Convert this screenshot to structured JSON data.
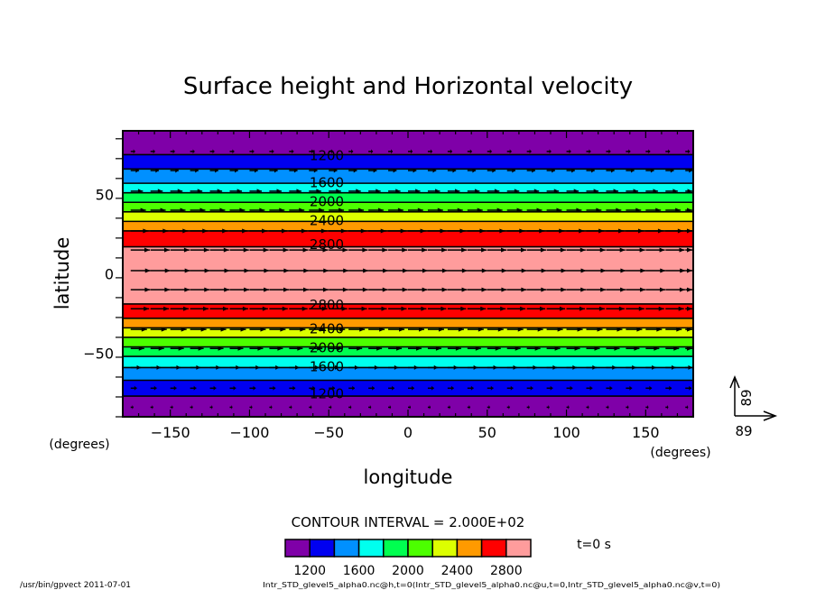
{
  "chart_data": {
    "type": "heatmap",
    "title": "Surface height and Horizontal velocity",
    "xlabel": "longitude",
    "ylabel": "latitude",
    "x_units": "(degrees)",
    "y_units": "(degrees)",
    "xlim": [
      -180,
      180
    ],
    "ylim": [
      -90,
      90
    ],
    "x_ticks": [
      -150,
      -100,
      -50,
      0,
      50,
      100,
      150
    ],
    "x_tick_labels": [
      "−150",
      "−100",
      "−50",
      "0",
      "50",
      "100",
      "150"
    ],
    "y_ticks": [
      50,
      0,
      -50
    ],
    "y_tick_labels": [
      "50",
      "0",
      "−50"
    ],
    "contour_levels": [
      1200,
      1400,
      1600,
      1800,
      2000,
      2200,
      2400,
      2600,
      2800
    ],
    "contour_labels": [
      {
        "text": "1200",
        "lat": 75
      },
      {
        "text": "1600",
        "lat": 58
      },
      {
        "text": "2000",
        "lat": 46
      },
      {
        "text": "2400",
        "lat": 34
      },
      {
        "text": "2800",
        "lat": 19
      },
      {
        "text": "2800",
        "lat": -19
      },
      {
        "text": "2400",
        "lat": -34
      },
      {
        "text": "2000",
        "lat": -46
      },
      {
        "text": "1600",
        "lat": -58
      },
      {
        "text": "1200",
        "lat": -75
      }
    ],
    "bands": [
      {
        "lat_top": 90,
        "lat_bottom": 75,
        "color": "#7f00a8"
      },
      {
        "lat_top": 75,
        "lat_bottom": 66,
        "color": "#0000f0"
      },
      {
        "lat_top": 66,
        "lat_bottom": 57,
        "color": "#0090ff"
      },
      {
        "lat_top": 57,
        "lat_bottom": 51,
        "color": "#00ffee"
      },
      {
        "lat_top": 51,
        "lat_bottom": 45,
        "color": "#00ff50"
      },
      {
        "lat_top": 45,
        "lat_bottom": 39,
        "color": "#4cff00"
      },
      {
        "lat_top": 39,
        "lat_bottom": 33,
        "color": "#dcff00"
      },
      {
        "lat_top": 33,
        "lat_bottom": 27,
        "color": "#ff9a00"
      },
      {
        "lat_top": 27,
        "lat_bottom": 17,
        "color": "#ff0000"
      },
      {
        "lat_top": 17,
        "lat_bottom": -19,
        "color": "#ff9c9c"
      },
      {
        "lat_top": -19,
        "lat_bottom": -28,
        "color": "#ff0000"
      },
      {
        "lat_top": -28,
        "lat_bottom": -34,
        "color": "#ff9a00"
      },
      {
        "lat_top": -34,
        "lat_bottom": -40,
        "color": "#dcff00"
      },
      {
        "lat_top": -40,
        "lat_bottom": -46,
        "color": "#4cff00"
      },
      {
        "lat_top": -46,
        "lat_bottom": -52,
        "color": "#00ff50"
      },
      {
        "lat_top": -52,
        "lat_bottom": -59,
        "color": "#00ffee"
      },
      {
        "lat_top": -59,
        "lat_bottom": -67,
        "color": "#0090ff"
      },
      {
        "lat_top": -67,
        "lat_bottom": -77,
        "color": "#0000f0"
      },
      {
        "lat_top": -77,
        "lat_bottom": -90,
        "color": "#7f00a8"
      }
    ],
    "vector_rows_lat": [
      77,
      65,
      52,
      40,
      27,
      15,
      2,
      -10,
      -22,
      -35,
      -47,
      -59,
      -72,
      -84
    ],
    "vector_reference": {
      "u": 89,
      "v": 89,
      "u_label": "89",
      "v_label": "89"
    },
    "colorbar": {
      "colors": [
        "#7f00a8",
        "#0000f0",
        "#0090ff",
        "#00ffee",
        "#00ff50",
        "#4cff00",
        "#dcff00",
        "#ff9a00",
        "#ff0000",
        "#ff9c9c"
      ],
      "tick_labels": [
        "1200",
        "1600",
        "2000",
        "2400",
        "2800"
      ]
    },
    "contour_interval_text": "CONTOUR INTERVAL = 2.000E+02",
    "time_text": "t=0 s"
  },
  "footer": {
    "program": "/usr/bin/gpvect  2011-07-01",
    "source": "Intr_STD_glevel5_alpha0.nc@h,t=0(Intr_STD_glevel5_alpha0.nc@u,t=0,Intr_STD_glevel5_alpha0.nc@v,t=0)"
  }
}
